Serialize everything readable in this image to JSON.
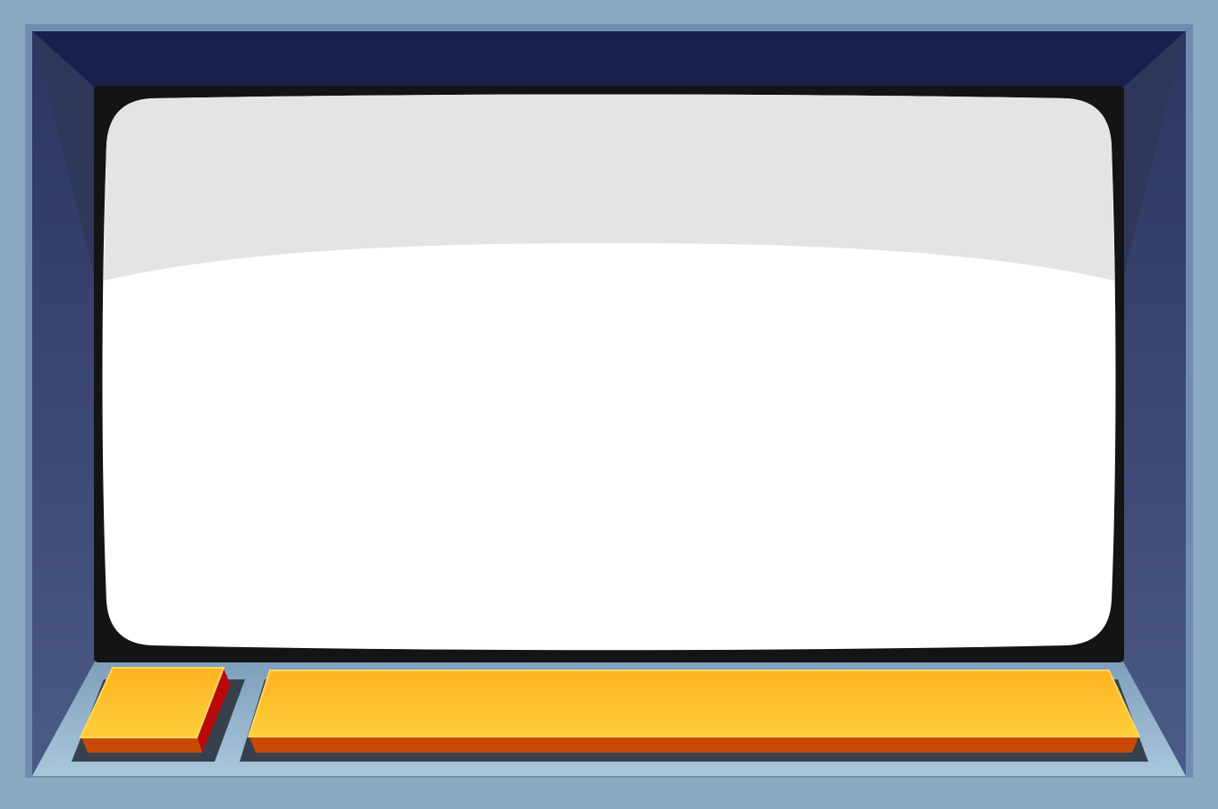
{
  "colors": {
    "outer_frame": "#8aa9bf",
    "cabinet_top": "#1a1f4e",
    "cabinet_side": "#3f4b78",
    "bezel": "#141414",
    "screen_glare": "#e4e4e4",
    "screen": "#ffffff",
    "console_light": "#a8c6db",
    "console_dark": "#7d9cb8",
    "button_top": "#ffb82a",
    "button_front": "#c84a06",
    "button_side_red": "#b80a0a",
    "button_well": "#37414e"
  },
  "icons": {
    "small_button": "square-push-button-icon",
    "wide_button": "wide-push-button-icon"
  },
  "labels": {
    "small_button": "",
    "wide_button": ""
  }
}
